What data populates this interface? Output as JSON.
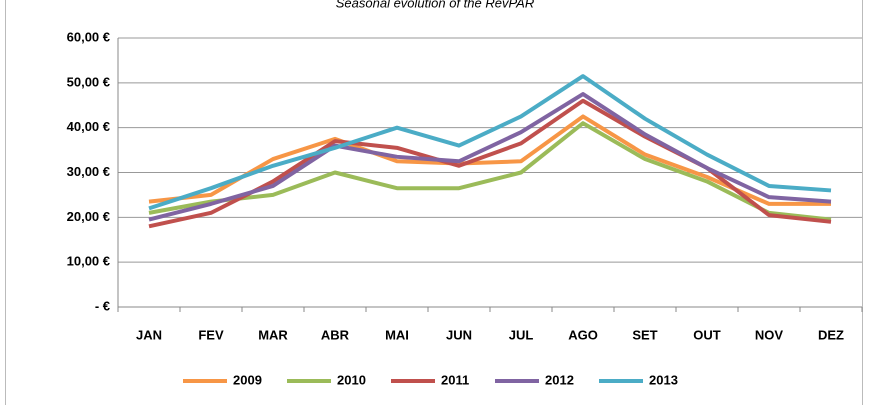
{
  "chart_data": {
    "type": "line",
    "title": "Seasonal evolution of the RevPAR",
    "categories": [
      "JAN",
      "FEV",
      "MAR",
      "ABR",
      "MAI",
      "JUN",
      "JUL",
      "AGO",
      "SET",
      "OUT",
      "NOV",
      "DEZ"
    ],
    "series": [
      {
        "name": "2009",
        "color": "#f79646",
        "values": [
          23.5,
          25,
          33,
          37.5,
          32.5,
          32,
          32.5,
          42.5,
          34,
          29,
          23,
          23
        ]
      },
      {
        "name": "2010",
        "color": "#9bbb59",
        "values": [
          21,
          23.5,
          25,
          30,
          26.5,
          26.5,
          30,
          41,
          33,
          28,
          21,
          19.5
        ]
      },
      {
        "name": "2011",
        "color": "#c0504d",
        "values": [
          18,
          21,
          28,
          37,
          35.5,
          31.5,
          36.5,
          46,
          38,
          31,
          20.5,
          19
        ]
      },
      {
        "name": "2012",
        "color": "#8064a2",
        "values": [
          19.5,
          23,
          27,
          36,
          33.5,
          32.5,
          39,
          47.5,
          38.5,
          31,
          24.5,
          23.5
        ]
      },
      {
        "name": "2013",
        "color": "#4bacc6",
        "values": [
          22,
          26.5,
          31.5,
          35.5,
          40,
          36,
          42.5,
          51.5,
          42,
          34,
          27,
          26
        ]
      }
    ],
    "ylim": [
      0,
      60
    ],
    "yticks": [
      {
        "value": 0,
        "label": "-   €"
      },
      {
        "value": 10,
        "label": "10,00 €"
      },
      {
        "value": 20,
        "label": "20,00 €"
      },
      {
        "value": 30,
        "label": "30,00 €"
      },
      {
        "value": 40,
        "label": "40,00 €"
      },
      {
        "value": 50,
        "label": "50,00 €"
      },
      {
        "value": 60,
        "label": "60,00 €"
      }
    ],
    "grid": true,
    "legend": "bottom"
  }
}
